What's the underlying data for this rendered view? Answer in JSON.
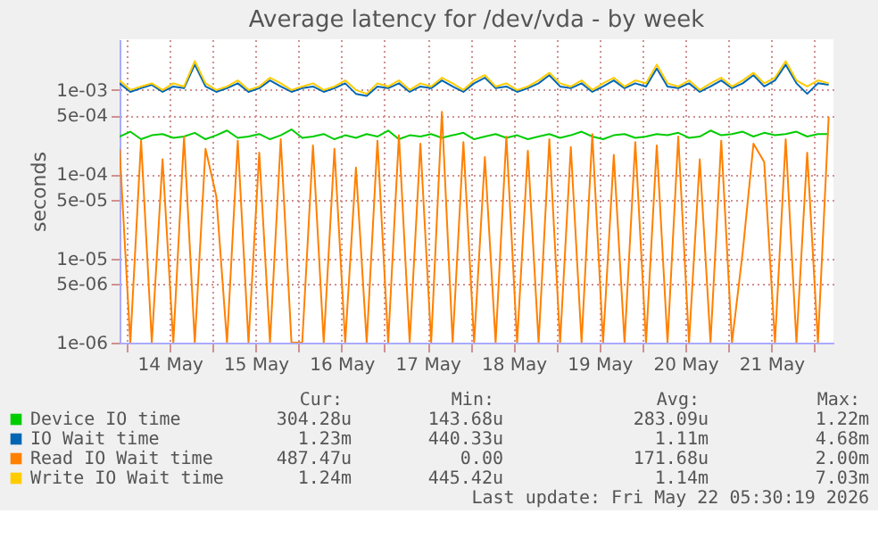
{
  "chart_data": {
    "type": "line",
    "title": "Average latency for /dev/vda - by week",
    "ylabel": "seconds",
    "log": "y",
    "grid": true,
    "legend": "bottom",
    "marker": "none",
    "line_style": "solid",
    "xlim": [
      "2026-05-13T22:00",
      "2026-05-22T05:20"
    ],
    "xticks": [
      {
        "value": "2026-05-14T00:00",
        "label": null
      },
      {
        "value": "2026-05-14T12:00",
        "label": "14 May"
      },
      {
        "value": "2026-05-15T00:00",
        "label": null
      },
      {
        "value": "2026-05-15T12:00",
        "label": "15 May"
      },
      {
        "value": "2026-05-16T00:00",
        "label": null
      },
      {
        "value": "2026-05-16T12:00",
        "label": "16 May"
      },
      {
        "value": "2026-05-17T00:00",
        "label": null
      },
      {
        "value": "2026-05-17T12:00",
        "label": "17 May"
      },
      {
        "value": "2026-05-18T00:00",
        "label": null
      },
      {
        "value": "2026-05-18T12:00",
        "label": "18 May"
      },
      {
        "value": "2026-05-19T00:00",
        "label": null
      },
      {
        "value": "2026-05-19T12:00",
        "label": "19 May"
      },
      {
        "value": "2026-05-20T00:00",
        "label": null
      },
      {
        "value": "2026-05-20T12:00",
        "label": "20 May"
      },
      {
        "value": "2026-05-21T00:00",
        "label": null
      },
      {
        "value": "2026-05-21T12:00",
        "label": "21 May"
      },
      {
        "value": "2026-05-22T00:00",
        "label": null
      }
    ],
    "ylim": [
      1e-06,
      0.004
    ],
    "yticks": [
      {
        "value": 1e-06,
        "label": "1e-06"
      },
      {
        "value": 5e-06,
        "label": "5e-06"
      },
      {
        "value": 1e-05,
        "label": "1e-05"
      },
      {
        "value": 5e-05,
        "label": "5e-05"
      },
      {
        "value": 0.0001,
        "label": "1e-04"
      },
      {
        "value": 0.0005,
        "label": "5e-04"
      },
      {
        "value": 0.001,
        "label": "1e-03"
      }
    ],
    "x": [
      "2026-05-13T22:00",
      "2026-05-14T01:00",
      "2026-05-14T04:00",
      "2026-05-14T07:00",
      "2026-05-14T10:00",
      "2026-05-14T13:00",
      "2026-05-14T16:00",
      "2026-05-14T19:00",
      "2026-05-14T22:00",
      "2026-05-15T01:00",
      "2026-05-15T04:00",
      "2026-05-15T07:00",
      "2026-05-15T10:00",
      "2026-05-15T13:00",
      "2026-05-15T16:00",
      "2026-05-15T19:00",
      "2026-05-15T22:00",
      "2026-05-16T01:00",
      "2026-05-16T04:00",
      "2026-05-16T07:00",
      "2026-05-16T10:00",
      "2026-05-16T13:00",
      "2026-05-16T16:00",
      "2026-05-16T19:00",
      "2026-05-16T22:00",
      "2026-05-17T01:00",
      "2026-05-17T04:00",
      "2026-05-17T07:00",
      "2026-05-17T10:00",
      "2026-05-17T13:00",
      "2026-05-17T16:00",
      "2026-05-17T19:00",
      "2026-05-17T22:00",
      "2026-05-18T01:00",
      "2026-05-18T04:00",
      "2026-05-18T07:00",
      "2026-05-18T10:00",
      "2026-05-18T13:00",
      "2026-05-18T16:00",
      "2026-05-18T19:00",
      "2026-05-18T22:00",
      "2026-05-19T01:00",
      "2026-05-19T04:00",
      "2026-05-19T07:00",
      "2026-05-19T10:00",
      "2026-05-19T13:00",
      "2026-05-19T16:00",
      "2026-05-19T19:00",
      "2026-05-19T22:00",
      "2026-05-20T01:00",
      "2026-05-20T04:00",
      "2026-05-20T07:00",
      "2026-05-20T10:00",
      "2026-05-20T13:00",
      "2026-05-20T16:00",
      "2026-05-20T19:00",
      "2026-05-20T22:00",
      "2026-05-21T01:00",
      "2026-05-21T04:00",
      "2026-05-21T07:00",
      "2026-05-21T10:00",
      "2026-05-21T13:00",
      "2026-05-21T16:00",
      "2026-05-21T19:00",
      "2026-05-21T22:00",
      "2026-05-22T01:00",
      "2026-05-22T04:00"
    ],
    "series": [
      {
        "name": "Device IO time",
        "color": "#00cc00",
        "values": [
          0.00028,
          0.00032,
          0.00026,
          0.00029,
          0.0003,
          0.00027,
          0.00028,
          0.00031,
          0.00026,
          0.00029,
          0.00033,
          0.00027,
          0.00028,
          0.0003,
          0.00026,
          0.00029,
          0.00034,
          0.00027,
          0.00028,
          0.0003,
          0.00026,
          0.00029,
          0.00027,
          0.0003,
          0.00028,
          0.00033,
          0.00026,
          0.00029,
          0.00028,
          0.0003,
          0.00027,
          0.00029,
          0.00031,
          0.00026,
          0.00028,
          0.0003,
          0.00027,
          0.00029,
          0.00026,
          0.00028,
          0.0003,
          0.00027,
          0.00029,
          0.00032,
          0.00028,
          0.00026,
          0.00029,
          0.0003,
          0.00027,
          0.00028,
          0.0003,
          0.00029,
          0.00031,
          0.00027,
          0.00028,
          0.00033,
          0.00029,
          0.0003,
          0.00032,
          0.00028,
          0.00031,
          0.00029,
          0.0003,
          0.00032,
          0.00028,
          0.0003,
          0.0003
        ]
      },
      {
        "name": "IO Wait time",
        "color": "#0066b3",
        "values": [
          0.0012,
          0.00095,
          0.00105,
          0.00115,
          0.00095,
          0.0011,
          0.00105,
          0.002,
          0.0011,
          0.00095,
          0.00105,
          0.0012,
          0.00095,
          0.00105,
          0.0013,
          0.0011,
          0.00095,
          0.00105,
          0.0011,
          0.00095,
          0.00105,
          0.0012,
          0.0009,
          0.00085,
          0.0011,
          0.00105,
          0.0012,
          0.00095,
          0.0011,
          0.00105,
          0.0013,
          0.0011,
          0.00095,
          0.0012,
          0.0014,
          0.00105,
          0.0011,
          0.00095,
          0.00105,
          0.0012,
          0.0015,
          0.0011,
          0.00105,
          0.0012,
          0.00095,
          0.0011,
          0.0013,
          0.00105,
          0.0012,
          0.0011,
          0.0018,
          0.0011,
          0.00105,
          0.0012,
          0.00095,
          0.0011,
          0.0013,
          0.00105,
          0.0012,
          0.0015,
          0.0011,
          0.0013,
          0.002,
          0.0012,
          0.0009,
          0.0012,
          0.00115
        ]
      },
      {
        "name": "Read IO Wait time",
        "color": "#ff8000",
        "values": [
          0.0002,
          1e-06,
          0.00025,
          1e-06,
          0.00015,
          1e-06,
          0.00028,
          1e-06,
          0.0002,
          5.5e-05,
          1e-06,
          0.00025,
          1e-06,
          0.00018,
          1e-06,
          0.00026,
          1e-06,
          1e-06,
          0.00022,
          1e-06,
          0.0002,
          1e-06,
          0.00012,
          1e-06,
          0.00025,
          1e-06,
          0.00029,
          1e-06,
          0.00023,
          1e-06,
          0.00055,
          1e-06,
          0.00024,
          1e-06,
          0.00016,
          1e-06,
          0.00028,
          1e-06,
          0.00019,
          1e-06,
          0.00026,
          1e-06,
          0.00021,
          1e-06,
          0.0003,
          1e-06,
          0.00017,
          1e-06,
          0.00024,
          1e-06,
          0.00022,
          1e-06,
          0.00028,
          1e-06,
          0.00015,
          1e-06,
          0.00025,
          1e-06,
          1.2e-05,
          0.00023,
          0.00014,
          1e-06,
          0.00026,
          1e-06,
          0.00018,
          1e-06,
          0.00048
        ]
      },
      {
        "name": "Write IO Wait time",
        "color": "#ffcc00",
        "values": [
          0.0013,
          0.001,
          0.0011,
          0.0012,
          0.001,
          0.0012,
          0.0011,
          0.0022,
          0.0012,
          0.001,
          0.0011,
          0.0013,
          0.001,
          0.0011,
          0.0014,
          0.0012,
          0.001,
          0.0011,
          0.0012,
          0.001,
          0.0011,
          0.0013,
          0.001,
          0.0009,
          0.0012,
          0.0011,
          0.0013,
          0.001,
          0.0012,
          0.0011,
          0.0014,
          0.0012,
          0.001,
          0.0013,
          0.0015,
          0.0011,
          0.0012,
          0.001,
          0.0011,
          0.0013,
          0.0016,
          0.0012,
          0.0011,
          0.0013,
          0.001,
          0.0012,
          0.0014,
          0.0011,
          0.0013,
          0.0012,
          0.002,
          0.0012,
          0.0011,
          0.0013,
          0.001,
          0.0012,
          0.0014,
          0.0011,
          0.0013,
          0.0016,
          0.0012,
          0.0014,
          0.0022,
          0.0013,
          0.0011,
          0.0013,
          0.0012
        ]
      }
    ],
    "annotations": [
      "Cur:",
      "Min:",
      "Avg:",
      "Max:",
      "304.28u",
      "143.68u",
      "283.09u",
      "1.22m",
      "1.23m",
      "440.33u",
      "1.11m",
      "4.68m",
      "487.47u",
      "0.00",
      "171.68u",
      "2.00m",
      "1.24m",
      "445.42u",
      "1.14m",
      "7.03m",
      "Last update: Fri May 22 05:30:19 2026"
    ]
  }
}
